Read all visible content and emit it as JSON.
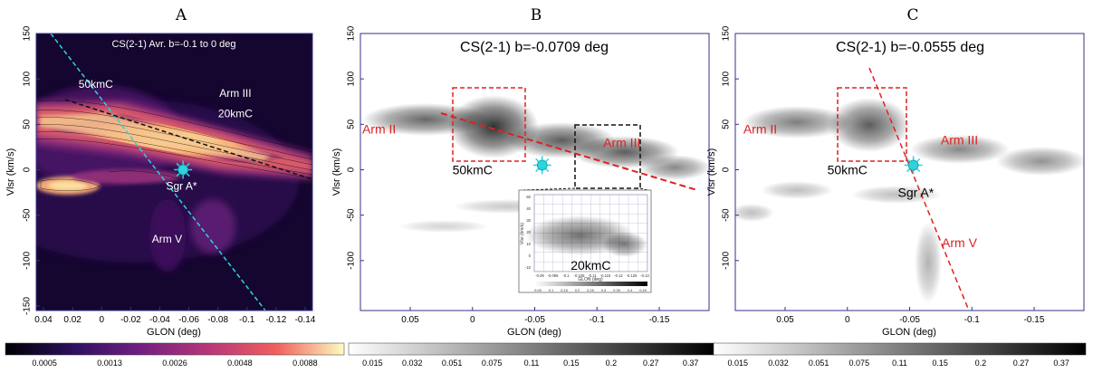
{
  "chart_data": [
    {
      "panel": "A",
      "type": "heatmap",
      "title": "CS(2-1) Avr. b=-0.1 to 0 deg",
      "xlabel": "GLON (deg)",
      "ylabel": "Vlsr (km/s)",
      "xlim": [
        0.045,
        -0.145
      ],
      "ylim": [
        -155,
        150
      ],
      "xticks": [
        0.04,
        0.02,
        0,
        -0.02,
        -0.04,
        -0.06,
        -0.08,
        -0.1,
        -0.12,
        -0.14
      ],
      "xtick_labels": [
        "0.04",
        "0.02",
        "0",
        "-0.02",
        "-0.04",
        "-0.06",
        "-0.08",
        "-0.1",
        "-0.12",
        "-0.14"
      ],
      "yticks": [
        150,
        100,
        50,
        0,
        -50,
        -100,
        -150
      ],
      "ytick_labels": [
        "150",
        "100",
        "50",
        "0",
        "-50",
        "-100",
        "-150"
      ],
      "colormap": "magma",
      "colorbar_ticks": [
        "0.0005",
        "0.0013",
        "0.0026",
        "0.0048",
        "0.0088"
      ],
      "annotations": [
        {
          "text": "50kmC",
          "x": 0.004,
          "y": 90,
          "color": "#ffffff"
        },
        {
          "text": "Arm III",
          "x": -0.092,
          "y": 80,
          "color": "#ffffff"
        },
        {
          "text": "20kmC",
          "x": -0.092,
          "y": 58,
          "color": "#ffffff"
        },
        {
          "text": "Sgr A*",
          "x": -0.055,
          "y": -22,
          "color": "#ffffff"
        },
        {
          "text": "Arm V",
          "x": -0.045,
          "y": -80,
          "color": "#ffffff"
        }
      ],
      "markers": [
        {
          "name": "sgr-a-star",
          "x": -0.056,
          "y": 0,
          "color": "#2ad4e0"
        }
      ],
      "lines": [
        {
          "name": "cyan-dashed",
          "color": "#2ad4e0",
          "points": [
            [
              0.038,
              150
            ],
            [
              -0.102,
              -155
            ]
          ]
        },
        {
          "name": "black-dashed",
          "color": "#111111",
          "points": [
            [
              0.03,
              88
            ],
            [
              -0.145,
              0
            ]
          ]
        }
      ]
    },
    {
      "panel": "B",
      "type": "heatmap",
      "title": "CS(2-1) b=-0.0709 deg",
      "xlabel": "GLON (deg)",
      "ylabel": "Vlsr (km/s)",
      "xlim": [
        0.09,
        -0.19
      ],
      "ylim": [
        -155,
        150
      ],
      "xticks": [
        0.05,
        0,
        -0.05,
        -0.1,
        -0.15
      ],
      "xtick_labels": [
        "0.05",
        "0",
        "-0.05",
        "-0.1",
        "-0.15"
      ],
      "yticks": [
        150,
        100,
        50,
        0,
        -50,
        -100
      ],
      "ytick_labels": [
        "150",
        "100",
        "50",
        "0",
        "-50",
        "-100"
      ],
      "colormap": "gray_r",
      "colorbar_ticks": [
        "0.015",
        "0.032",
        "0.051",
        "0.075",
        "0.11",
        "0.15",
        "0.2",
        "0.27",
        "0.37"
      ],
      "annotations": [
        {
          "text": "Arm II",
          "x": 0.075,
          "y": 40,
          "color": "#e02020"
        },
        {
          "text": "Arm III",
          "x": -0.12,
          "y": 25,
          "color": "#e02020"
        },
        {
          "text": "50kmC",
          "x": 0.0,
          "y": -5,
          "color": "#000000"
        },
        {
          "text": "20kmC",
          "x": -0.095,
          "y": -110,
          "color": "#000000"
        }
      ],
      "markers": [
        {
          "name": "sgr-a-star",
          "x": -0.056,
          "y": 5,
          "color": "#2ad4e0"
        }
      ],
      "boxes": [
        {
          "name": "50kmC-box",
          "color": "#e02020",
          "x": [
            0.015,
            -0.045
          ],
          "y": [
            10,
            92
          ]
        },
        {
          "name": "20kmC-box",
          "color": "#111111",
          "x": [
            -0.088,
            -0.14
          ],
          "y": [
            -18,
            52
          ]
        }
      ],
      "lines": [
        {
          "name": "red-dashed",
          "color": "#e02020",
          "points": [
            [
              0.025,
              88
            ],
            [
              -0.18,
              -22
            ]
          ]
        }
      ],
      "inset": {
        "xtick_labels": [
          "-0.09",
          "-0.095",
          "-0.1",
          "-0.105",
          "-0.11",
          "-0.115",
          "-0.12",
          "-0.125",
          "-0.13"
        ],
        "ytick_labels": [
          "50",
          "40",
          "30",
          "20",
          "10",
          "0",
          "-10"
        ],
        "xlabel": "GLON (deg)",
        "ylabel": "Vlsr (km/s)",
        "colorbar_ticks": [
          "0.05",
          "0.1",
          "0.15",
          "0.2",
          "0.25",
          "0.3",
          "0.35",
          "0.4",
          "0.45"
        ]
      }
    },
    {
      "panel": "C",
      "type": "heatmap",
      "title": "CS(2-1) b=-0.0555 deg",
      "xlabel": "GLON (deg)",
      "ylabel": "Vlsr (km/s)",
      "xlim": [
        0.09,
        -0.19
      ],
      "ylim": [
        -155,
        150
      ],
      "xticks": [
        0.05,
        0,
        -0.05,
        -0.1,
        -0.15
      ],
      "xtick_labels": [
        "0.05",
        "0",
        "-0.05",
        "-0.1",
        "-0.15"
      ],
      "yticks": [
        150,
        100,
        50,
        0,
        -50,
        -100
      ],
      "ytick_labels": [
        "150",
        "100",
        "50",
        "0",
        "-50",
        "-100"
      ],
      "colormap": "gray_r",
      "colorbar_ticks": [
        "0.015",
        "0.032",
        "0.051",
        "0.075",
        "0.11",
        "0.15",
        "0.2",
        "0.27",
        "0.37"
      ],
      "annotations": [
        {
          "text": "Arm II",
          "x": 0.07,
          "y": 40,
          "color": "#e02020"
        },
        {
          "text": "Arm III",
          "x": -0.09,
          "y": 28,
          "color": "#e02020"
        },
        {
          "text": "50kmC",
          "x": 0.0,
          "y": -5,
          "color": "#000000"
        },
        {
          "text": "Sgr A*",
          "x": -0.055,
          "y": -30,
          "color": "#000000"
        },
        {
          "text": "Arm V",
          "x": -0.09,
          "y": -85,
          "color": "#e02020"
        }
      ],
      "markers": [
        {
          "name": "sgr-a-star",
          "x": -0.053,
          "y": 5,
          "color": "#2ad4e0"
        }
      ],
      "boxes": [
        {
          "name": "50kmC-box",
          "color": "#e02020",
          "x": [
            0.015,
            -0.04
          ],
          "y": [
            10,
            92
          ]
        }
      ],
      "lines": [
        {
          "name": "red-dashed",
          "color": "#e02020",
          "points": [
            [
              -0.005,
              125
            ],
            [
              -0.097,
              -155
            ]
          ]
        }
      ]
    }
  ]
}
